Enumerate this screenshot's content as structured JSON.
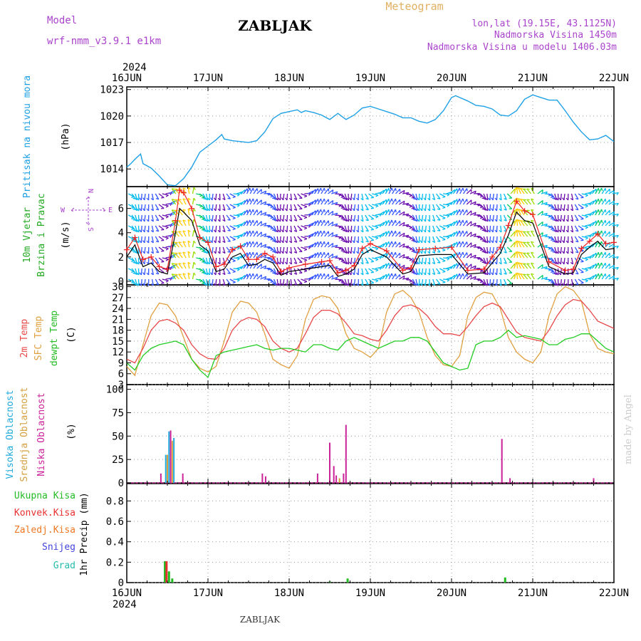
{
  "header": {
    "model_label": "Model",
    "model_name": "wrf-nmm_v3.9.1  e1km",
    "station": "ZABLJAK",
    "meteogram_label": "Meteogram",
    "lonlat": "lon,lat (19.15E, 43.1125N)",
    "elevation": "Nadmorska Visina 1450m",
    "model_elevation": "Nadmorska Visina u modelu 1406.03m",
    "year_top": "2024",
    "year_bottom": "2024",
    "footer_station": "ZABLJAK",
    "credit": "made by Angel"
  },
  "colors": {
    "pressure": "#1ea0e6",
    "temp2m": "#e8484a",
    "sfc": "#e0a040",
    "dewpt": "#22cc22",
    "cloud_high": "#22aadd",
    "cloud_mid": "#d4a040",
    "cloud_low": "#cc2299",
    "precip_total": "#22bb22",
    "precip_conv": "#e83030",
    "precip_frz": "#ee7722",
    "precip_snow": "#4444dd",
    "precip_graupel": "#22bbaa",
    "wind_label": "#22aa22",
    "compass": "#aa44cc"
  },
  "chart_data": [
    {
      "type": "line",
      "panel": "pressure",
      "x_ticks": [
        "16JUN",
        "17JUN",
        "18JUN",
        "19JUN",
        "20JUN",
        "21JUN",
        "22JUN"
      ],
      "xlim_days": [
        0,
        6
      ],
      "ylabel": "Pritisak na nivou mora",
      "unit": "(hPa)",
      "y_ticks": [
        "1014",
        "1017",
        "1020",
        "1023"
      ],
      "ylim": [
        1012,
        1023.3
      ],
      "grid": true,
      "series": [
        {
          "key": "pressure",
          "x": [
            0,
            0.05,
            0.1,
            0.17,
            0.2,
            0.3,
            0.4,
            0.5,
            0.6,
            0.7,
            0.8,
            0.9,
            1.0,
            1.1,
            1.17,
            1.2,
            1.3,
            1.5,
            1.6,
            1.7,
            1.8,
            1.9,
            2.0,
            2.1,
            2.15,
            2.2,
            2.3,
            2.4,
            2.5,
            2.6,
            2.7,
            2.8,
            2.9,
            3.0,
            3.1,
            3.2,
            3.3,
            3.4,
            3.5,
            3.6,
            3.7,
            3.8,
            3.9,
            4.0,
            4.05,
            4.1,
            4.2,
            4.3,
            4.4,
            4.5,
            4.6,
            4.7,
            4.8,
            4.9,
            5.0,
            5.1,
            5.2,
            5.3,
            5.4,
            5.5,
            5.6,
            5.7,
            5.8,
            5.9,
            6.0
          ],
          "y": [
            1014.2,
            1014.6,
            1015.1,
            1015.7,
            1014.6,
            1014.1,
            1013.2,
            1012.2,
            1012.1,
            1012.9,
            1014.2,
            1015.9,
            1016.6,
            1017.3,
            1017.9,
            1017.4,
            1017.2,
            1017.0,
            1017.2,
            1018.2,
            1019.7,
            1020.3,
            1020.5,
            1020.7,
            1020.4,
            1020.6,
            1020.4,
            1020.1,
            1019.6,
            1020.3,
            1019.6,
            1020.1,
            1020.9,
            1021.1,
            1020.8,
            1020.5,
            1020.2,
            1019.8,
            1019.8,
            1019.4,
            1019.2,
            1019.6,
            1020.6,
            1022.1,
            1022.3,
            1022.1,
            1021.7,
            1021.2,
            1021.1,
            1020.8,
            1020.1,
            1020.0,
            1020.6,
            1021.9,
            1022.4,
            1022.1,
            1021.8,
            1021.8,
            1020.6,
            1019.3,
            1018.2,
            1017.3,
            1017.4,
            1017.8,
            1017.1
          ]
        }
      ]
    },
    {
      "type": "line",
      "panel": "wind",
      "ylabel": "10m Vjetar Brzina i Pravac",
      "unit": "(m/s)",
      "compass": {
        "n": "N",
        "s": "S",
        "e": "E",
        "w": "W"
      },
      "y_ticks": [
        "0",
        "2",
        "4",
        "6"
      ],
      "ylim": [
        -0.3,
        7.8
      ],
      "grid": false,
      "series": [
        {
          "key": "speed_black",
          "x": [
            0,
            0.1,
            0.2,
            0.3,
            0.4,
            0.5,
            0.6,
            0.65,
            0.7,
            0.8,
            0.9,
            1.0,
            1.1,
            1.2,
            1.3,
            1.4,
            1.5,
            1.6,
            1.7,
            1.8,
            1.9,
            2.0,
            2.2,
            2.4,
            2.5,
            2.6,
            2.7,
            2.8,
            2.9,
            3.0,
            3.2,
            3.4,
            3.5,
            3.6,
            3.8,
            4.0,
            4.2,
            4.4,
            4.5,
            4.6,
            4.7,
            4.8,
            4.9,
            5.0,
            5.2,
            5.4,
            5.5,
            5.6,
            5.7,
            5.8,
            5.9,
            6.0
          ],
          "y": [
            2.0,
            3.0,
            1.2,
            1.5,
            0.8,
            0.6,
            4.0,
            6.0,
            5.7,
            5.0,
            3.0,
            2.5,
            0.8,
            1.0,
            2.0,
            2.3,
            1.3,
            1.4,
            1.8,
            1.5,
            0.5,
            0.8,
            1.0,
            1.2,
            1.3,
            0.4,
            0.6,
            1.0,
            2.2,
            2.6,
            2.0,
            0.6,
            0.8,
            2.1,
            2.2,
            2.2,
            0.6,
            0.7,
            1.5,
            2.3,
            3.8,
            5.7,
            5.0,
            4.8,
            1.2,
            0.6,
            0.7,
            2.2,
            2.8,
            3.3,
            2.6,
            2.7
          ]
        },
        {
          "key": "speed_red",
          "x": [
            0,
            0.1,
            0.2,
            0.3,
            0.4,
            0.5,
            0.6,
            0.65,
            0.7,
            0.8,
            0.9,
            1.0,
            1.1,
            1.2,
            1.3,
            1.4,
            1.5,
            1.6,
            1.7,
            1.8,
            1.9,
            2.0,
            2.2,
            2.4,
            2.5,
            2.6,
            2.7,
            2.8,
            2.9,
            3.0,
            3.2,
            3.4,
            3.5,
            3.6,
            3.8,
            4.0,
            4.2,
            4.4,
            4.5,
            4.6,
            4.7,
            4.8,
            4.9,
            5.0,
            5.2,
            5.4,
            5.5,
            5.6,
            5.7,
            5.8,
            5.9,
            6.0
          ],
          "y": [
            2.6,
            3.6,
            1.8,
            2.0,
            1.2,
            1.0,
            5.0,
            7.5,
            7.3,
            6.0,
            3.6,
            3.2,
            1.2,
            1.4,
            2.6,
            2.9,
            1.8,
            1.8,
            2.3,
            2.0,
            0.8,
            1.1,
            1.4,
            1.6,
            1.7,
            0.7,
            0.9,
            1.3,
            2.7,
            3.1,
            2.5,
            0.9,
            1.1,
            2.6,
            2.7,
            2.8,
            0.9,
            1.0,
            2.0,
            2.8,
            4.6,
            6.6,
            5.8,
            5.5,
            1.6,
            0.9,
            1.0,
            2.7,
            3.3,
            3.9,
            3.1,
            3.2
          ]
        }
      ]
    },
    {
      "type": "line",
      "panel": "temperature",
      "ylabels": [
        "2m Temp",
        "SFC Temp",
        "dewpt Temp"
      ],
      "unit": "(C)",
      "y_ticks": [
        "3",
        "6",
        "9",
        "12",
        "15",
        "18",
        "21",
        "24",
        "27",
        "30"
      ],
      "ylim": [
        3,
        30.5
      ],
      "grid": true,
      "series": [
        {
          "key": "temp2m",
          "x": [
            0,
            0.1,
            0.2,
            0.3,
            0.4,
            0.5,
            0.6,
            0.7,
            0.8,
            0.9,
            1.0,
            1.1,
            1.2,
            1.3,
            1.4,
            1.5,
            1.6,
            1.7,
            1.8,
            1.9,
            2.0,
            2.1,
            2.2,
            2.3,
            2.4,
            2.5,
            2.6,
            2.7,
            2.8,
            2.9,
            3.0,
            3.1,
            3.2,
            3.3,
            3.4,
            3.5,
            3.6,
            3.7,
            3.8,
            3.9,
            4.0,
            4.1,
            4.2,
            4.3,
            4.4,
            4.5,
            4.6,
            4.7,
            4.8,
            4.9,
            5.0,
            5.1,
            5.2,
            5.3,
            5.4,
            5.5,
            5.6,
            5.7,
            5.8,
            5.9,
            6.0
          ],
          "y": [
            10,
            9,
            13,
            18,
            20.5,
            21,
            20,
            18,
            14,
            11.5,
            10.2,
            10,
            13,
            18,
            20.5,
            21.5,
            21,
            19,
            15,
            13,
            12,
            13,
            17,
            21.5,
            23.5,
            23.5,
            22.5,
            20,
            17,
            16.5,
            15.5,
            15,
            18,
            22,
            24.5,
            25,
            24,
            22,
            19,
            17,
            17,
            16.5,
            19,
            22,
            24.5,
            25.5,
            24.5,
            21,
            17.5,
            16,
            15.5,
            15,
            18,
            22,
            25,
            26.5,
            26,
            23.5,
            20.5,
            19.5,
            18.5
          ]
        },
        {
          "key": "sfc",
          "x": [
            0,
            0.1,
            0.2,
            0.3,
            0.4,
            0.5,
            0.6,
            0.7,
            0.8,
            0.9,
            1.0,
            1.1,
            1.2,
            1.3,
            1.4,
            1.5,
            1.6,
            1.7,
            1.8,
            1.9,
            2.0,
            2.1,
            2.2,
            2.3,
            2.4,
            2.5,
            2.6,
            2.7,
            2.8,
            2.9,
            3.0,
            3.1,
            3.2,
            3.3,
            3.4,
            3.5,
            3.6,
            3.7,
            3.8,
            3.9,
            4.0,
            4.1,
            4.2,
            4.3,
            4.4,
            4.5,
            4.6,
            4.7,
            4.8,
            4.9,
            5.0,
            5.1,
            5.2,
            5.3,
            5.4,
            5.5,
            5.6,
            5.7,
            5.8,
            5.9,
            6.0
          ],
          "y": [
            8,
            5.5,
            14,
            22,
            25.5,
            25,
            22,
            16,
            10,
            7.5,
            6.5,
            8,
            15,
            23,
            26,
            25.5,
            23,
            17,
            10,
            8.5,
            7.5,
            11,
            21,
            26.5,
            27.5,
            27,
            24,
            17,
            13,
            12,
            10.5,
            13,
            23,
            28,
            29,
            27,
            23,
            16,
            11,
            8.5,
            8,
            11,
            22,
            27,
            28.5,
            28,
            24,
            16,
            12,
            10,
            9,
            12,
            22,
            28,
            30,
            29,
            26,
            17,
            13,
            12,
            11.5
          ]
        },
        {
          "key": "dewpt",
          "x": [
            0,
            0.1,
            0.2,
            0.3,
            0.4,
            0.5,
            0.6,
            0.7,
            0.8,
            0.9,
            1.0,
            1.1,
            1.2,
            1.3,
            1.4,
            1.5,
            1.6,
            1.7,
            1.8,
            1.9,
            2.0,
            2.1,
            2.2,
            2.3,
            2.4,
            2.5,
            2.6,
            2.7,
            2.8,
            2.9,
            3.0,
            3.1,
            3.2,
            3.3,
            3.4,
            3.5,
            3.6,
            3.7,
            3.8,
            3.9,
            4.0,
            4.1,
            4.2,
            4.3,
            4.4,
            4.5,
            4.6,
            4.7,
            4.8,
            4.9,
            5.0,
            5.1,
            5.2,
            5.3,
            5.4,
            5.5,
            5.6,
            5.7,
            5.8,
            5.9,
            6.0
          ],
          "y": [
            9,
            7,
            11,
            13,
            14,
            14.5,
            15,
            14,
            10,
            7,
            5,
            11,
            12,
            12.5,
            13,
            13.5,
            14,
            13,
            12.5,
            13,
            13,
            12.5,
            12,
            14,
            14,
            13,
            12.5,
            15,
            16,
            15,
            14,
            13,
            14,
            15,
            15,
            16,
            16,
            15,
            12,
            9,
            8,
            7,
            7.5,
            14,
            15,
            15,
            16,
            18,
            16,
            16.5,
            16,
            15.5,
            14,
            14,
            15.5,
            16,
            17,
            17,
            15,
            13,
            12
          ]
        }
      ]
    },
    {
      "type": "bar",
      "panel": "clouds",
      "ylabels": [
        "Visoka Oblacnost",
        "Srednja Oblacnost",
        "Niska Oblacnost"
      ],
      "unit": "(%)",
      "y_ticks": [
        "0",
        "25",
        "50",
        "75",
        "100"
      ],
      "ylim": [
        0,
        105
      ],
      "grid": true,
      "bars": [
        {
          "key": "cloud_low",
          "x": 0.42,
          "value": 10
        },
        {
          "key": "cloud_high",
          "x": 0.48,
          "value": 30
        },
        {
          "key": "cloud_mid",
          "x": 0.5,
          "value": 30
        },
        {
          "key": "cloud_high",
          "x": 0.52,
          "value": 55
        },
        {
          "key": "cloud_low",
          "x": 0.54,
          "value": 56
        },
        {
          "key": "cloud_mid",
          "x": 0.56,
          "value": 45
        },
        {
          "key": "cloud_high",
          "x": 0.58,
          "value": 48
        },
        {
          "key": "cloud_low",
          "x": 0.69,
          "value": 10
        },
        {
          "key": "cloud_low",
          "x": 1.67,
          "value": 10
        },
        {
          "key": "cloud_low",
          "x": 1.71,
          "value": 7
        },
        {
          "key": "cloud_low",
          "x": 2.35,
          "value": 10
        },
        {
          "key": "cloud_low",
          "x": 2.5,
          "value": 43
        },
        {
          "key": "cloud_low",
          "x": 2.55,
          "value": 18
        },
        {
          "key": "cloud_low",
          "x": 2.58,
          "value": 8
        },
        {
          "key": "cloud_mid",
          "x": 2.62,
          "value": 5
        },
        {
          "key": "cloud_low",
          "x": 2.67,
          "value": 10
        },
        {
          "key": "cloud_low",
          "x": 2.7,
          "value": 62
        },
        {
          "key": "cloud_low",
          "x": 4.62,
          "value": 47
        },
        {
          "key": "cloud_low",
          "x": 4.72,
          "value": 5
        },
        {
          "key": "cloud_low",
          "x": 5.75,
          "value": 5
        }
      ]
    },
    {
      "type": "bar",
      "panel": "precip",
      "ylabel": "1hr Precip (mm)",
      "legend": [
        {
          "key": "precip_total",
          "label": "Ukupna Kisa"
        },
        {
          "key": "precip_conv",
          "label": "Konvek.Kisa"
        },
        {
          "key": "precip_frz",
          "label": "Zaledj.Kisa"
        },
        {
          "key": "precip_snow",
          "label": "Snijeg"
        },
        {
          "key": "precip_graupel",
          "label": "Grad"
        }
      ],
      "y_ticks": [
        "0",
        "0.2",
        "0.4",
        "0.6",
        "0.8"
      ],
      "ylim": [
        0,
        0.97
      ],
      "grid": true,
      "bars": [
        {
          "key": "precip_total",
          "x": 0.47,
          "value": 0.21
        },
        {
          "key": "precip_conv",
          "x": 0.49,
          "value": 0.21
        },
        {
          "key": "precip_total",
          "x": 0.52,
          "value": 0.11
        },
        {
          "key": "precip_total",
          "x": 0.56,
          "value": 0.04
        },
        {
          "key": "precip_total",
          "x": 2.5,
          "value": 0.01
        },
        {
          "key": "precip_total",
          "x": 2.72,
          "value": 0.04
        },
        {
          "key": "precip_total",
          "x": 4.66,
          "value": 0.05
        }
      ]
    }
  ]
}
